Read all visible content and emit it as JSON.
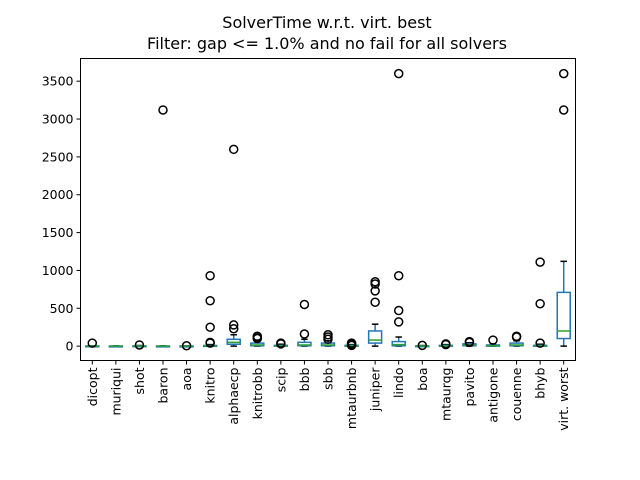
{
  "chart_data": {
    "type": "box",
    "title": "SolverTime w.r.t. virt. best",
    "subtitle": "Filter: gap <= 1.0% and no fail for all solvers",
    "xlabel": "",
    "ylabel": "",
    "ylim": [
      -190,
      3800
    ],
    "yticks": [
      0,
      500,
      1000,
      1500,
      2000,
      2500,
      3000,
      3500
    ],
    "grid": false,
    "colors": {
      "box": "#1f77b4",
      "median": "#2ca02c",
      "outlier": "#000000",
      "axis": "#000000"
    },
    "categories": [
      "dicopt",
      "muriqui",
      "shot",
      "baron",
      "aoa",
      "knitro",
      "alphaecp",
      "knitrobb",
      "scip",
      "bbb",
      "sbb",
      "mtaurbnb",
      "juniper",
      "lindo",
      "boa",
      "mtaurqg",
      "pavito",
      "antigone",
      "couenne",
      "bhyb",
      "virt. worst"
    ],
    "boxes": [
      {
        "q1": 0,
        "median": 0,
        "q3": 2,
        "whisker_low": 0,
        "whisker_high": 5,
        "outliers": [
          40
        ]
      },
      {
        "q1": 0,
        "median": 0,
        "q3": 1,
        "whisker_low": 0,
        "whisker_high": 2,
        "outliers": []
      },
      {
        "q1": 0,
        "median": 0,
        "q3": 3,
        "whisker_low": 0,
        "whisker_high": 8,
        "outliers": [
          15
        ]
      },
      {
        "q1": 0,
        "median": 0,
        "q3": 1,
        "whisker_low": 0,
        "whisker_high": 2,
        "outliers": [
          3120
        ]
      },
      {
        "q1": 0,
        "median": 0,
        "q3": 1,
        "whisker_low": 0,
        "whisker_high": 2,
        "outliers": [
          5
        ]
      },
      {
        "q1": 0,
        "median": 2,
        "q3": 8,
        "whisker_low": 0,
        "whisker_high": 20,
        "outliers": [
          930,
          600,
          250,
          50,
          40
        ]
      },
      {
        "q1": 25,
        "median": 50,
        "q3": 90,
        "whisker_low": 0,
        "whisker_high": 150,
        "outliers": [
          2600,
          280,
          230
        ]
      },
      {
        "q1": 5,
        "median": 15,
        "q3": 40,
        "whisker_low": 0,
        "whisker_high": 80,
        "outliers": [
          130,
          110,
          100
        ]
      },
      {
        "q1": 0,
        "median": 3,
        "q3": 10,
        "whisker_low": 0,
        "whisker_high": 25,
        "outliers": [
          40,
          30
        ]
      },
      {
        "q1": 5,
        "median": 15,
        "q3": 50,
        "whisker_low": 0,
        "whisker_high": 90,
        "outliers": [
          550,
          160
        ]
      },
      {
        "q1": 5,
        "median": 15,
        "q3": 40,
        "whisker_low": 0,
        "whisker_high": 70,
        "outliers": [
          150,
          120,
          90
        ]
      },
      {
        "q1": 0,
        "median": 2,
        "q3": 10,
        "whisker_low": 0,
        "whisker_high": 20,
        "outliers": [
          40,
          30,
          20,
          10
        ]
      },
      {
        "q1": 40,
        "median": 80,
        "q3": 200,
        "whisker_low": 0,
        "whisker_high": 290,
        "outliers": [
          850,
          820,
          730,
          580
        ]
      },
      {
        "q1": 5,
        "median": 20,
        "q3": 60,
        "whisker_low": 0,
        "whisker_high": 120,
        "outliers": [
          3600,
          930,
          470,
          320
        ]
      },
      {
        "q1": 0,
        "median": 0,
        "q3": 3,
        "whisker_low": 0,
        "whisker_high": 8,
        "outliers": [
          10
        ]
      },
      {
        "q1": 0,
        "median": 3,
        "q3": 10,
        "whisker_low": 0,
        "whisker_high": 20,
        "outliers": [
          30,
          20
        ]
      },
      {
        "q1": 5,
        "median": 15,
        "q3": 30,
        "whisker_low": 0,
        "whisker_high": 45,
        "outliers": [
          60,
          50
        ]
      },
      {
        "q1": 0,
        "median": 5,
        "q3": 15,
        "whisker_low": 0,
        "whisker_high": 30,
        "outliers": [
          80
        ]
      },
      {
        "q1": 5,
        "median": 15,
        "q3": 40,
        "whisker_low": 0,
        "whisker_high": 70,
        "outliers": [
          130,
          120
        ]
      },
      {
        "q1": 0,
        "median": 3,
        "q3": 10,
        "whisker_low": 0,
        "whisker_high": 25,
        "outliers": [
          1110,
          560,
          40
        ]
      },
      {
        "q1": 100,
        "median": 200,
        "q3": 710,
        "whisker_low": 0,
        "whisker_high": 1120,
        "outliers": [
          3600,
          3120
        ]
      }
    ]
  }
}
